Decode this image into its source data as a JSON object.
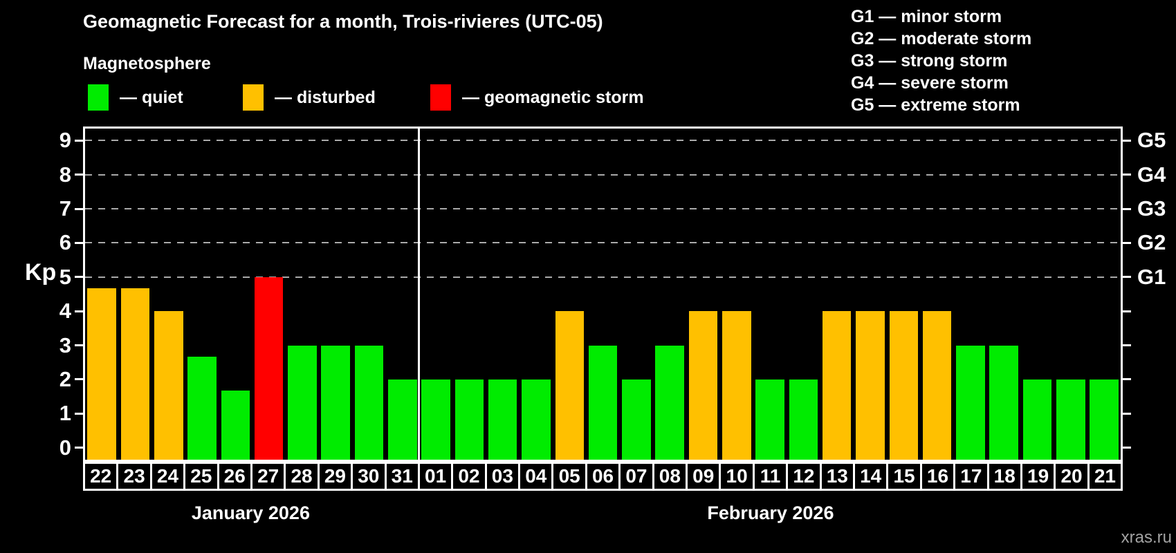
{
  "title": "Geomagnetic Forecast for a month, Trois-rivieres (UTC-05)",
  "subtitle": "Magnetosphere",
  "legend": {
    "items": [
      {
        "key": "quiet",
        "label": "— quiet",
        "color": "#00ec00"
      },
      {
        "key": "disturbed",
        "label": "— disturbed",
        "color": "#ffc000"
      },
      {
        "key": "storm",
        "label": "— geomagnetic storm",
        "color": "#ff0000"
      }
    ]
  },
  "storm_scale": {
    "items": [
      "G1 — minor storm",
      "G2 — moderate storm",
      "G3 — strong storm",
      "G4 — severe storm",
      "G5 — extreme storm"
    ]
  },
  "watermark": "xras.ru",
  "chart_data": {
    "type": "bar",
    "title": "Geomagnetic Forecast for a month, Trois-rivieres (UTC-05)",
    "subtitle": "Magnetosphere",
    "ylabel": "Kp",
    "ylim": [
      0,
      9
    ],
    "ylim_render": [
      -0.35,
      9.35
    ],
    "grid": "dashed horizontal lines at Kp 5-9 only",
    "gridlines": [
      5,
      6,
      7,
      8,
      9
    ],
    "y_ticks": [
      0,
      1,
      2,
      3,
      4,
      5,
      6,
      7,
      8,
      9
    ],
    "right_axis_labels": [
      {
        "label": "G1",
        "kp": 5
      },
      {
        "label": "G2",
        "kp": 6
      },
      {
        "label": "G3",
        "kp": 7
      },
      {
        "label": "G4",
        "kp": 8
      },
      {
        "label": "G5",
        "kp": 9
      }
    ],
    "legend_position": "top-left",
    "colors": {
      "quiet": "#00ec00",
      "disturbed": "#ffc000",
      "storm": "#ff0000"
    },
    "months": [
      {
        "label": "January 2026",
        "days_count": 10
      },
      {
        "label": "February 2026",
        "days_count": 21
      }
    ],
    "bars": [
      {
        "month": "January 2026",
        "day": "22",
        "kp": 4.67,
        "status": "disturbed"
      },
      {
        "month": "January 2026",
        "day": "23",
        "kp": 4.67,
        "status": "disturbed"
      },
      {
        "month": "January 2026",
        "day": "24",
        "kp": 4.0,
        "status": "disturbed"
      },
      {
        "month": "January 2026",
        "day": "25",
        "kp": 2.67,
        "status": "quiet"
      },
      {
        "month": "January 2026",
        "day": "26",
        "kp": 1.67,
        "status": "quiet"
      },
      {
        "month": "January 2026",
        "day": "27",
        "kp": 5.0,
        "status": "storm"
      },
      {
        "month": "January 2026",
        "day": "28",
        "kp": 3.0,
        "status": "quiet"
      },
      {
        "month": "January 2026",
        "day": "29",
        "kp": 3.0,
        "status": "quiet"
      },
      {
        "month": "January 2026",
        "day": "30",
        "kp": 3.0,
        "status": "quiet"
      },
      {
        "month": "January 2026",
        "day": "31",
        "kp": 2.0,
        "status": "quiet"
      },
      {
        "month": "February 2026",
        "day": "01",
        "kp": 2.0,
        "status": "quiet"
      },
      {
        "month": "February 2026",
        "day": "02",
        "kp": 2.0,
        "status": "quiet"
      },
      {
        "month": "February 2026",
        "day": "03",
        "kp": 2.0,
        "status": "quiet"
      },
      {
        "month": "February 2026",
        "day": "04",
        "kp": 2.0,
        "status": "quiet"
      },
      {
        "month": "February 2026",
        "day": "05",
        "kp": 4.0,
        "status": "disturbed"
      },
      {
        "month": "February 2026",
        "day": "06",
        "kp": 3.0,
        "status": "quiet"
      },
      {
        "month": "February 2026",
        "day": "07",
        "kp": 2.0,
        "status": "quiet"
      },
      {
        "month": "February 2026",
        "day": "08",
        "kp": 3.0,
        "status": "quiet"
      },
      {
        "month": "February 2026",
        "day": "09",
        "kp": 4.0,
        "status": "disturbed"
      },
      {
        "month": "February 2026",
        "day": "10",
        "kp": 4.0,
        "status": "disturbed"
      },
      {
        "month": "February 2026",
        "day": "11",
        "kp": 2.0,
        "status": "quiet"
      },
      {
        "month": "February 2026",
        "day": "12",
        "kp": 2.0,
        "status": "quiet"
      },
      {
        "month": "February 2026",
        "day": "13",
        "kp": 4.0,
        "status": "disturbed"
      },
      {
        "month": "February 2026",
        "day": "14",
        "kp": 4.0,
        "status": "disturbed"
      },
      {
        "month": "February 2026",
        "day": "15",
        "kp": 4.0,
        "status": "disturbed"
      },
      {
        "month": "February 2026",
        "day": "16",
        "kp": 4.0,
        "status": "disturbed"
      },
      {
        "month": "February 2026",
        "day": "17",
        "kp": 3.0,
        "status": "quiet"
      },
      {
        "month": "February 2026",
        "day": "18",
        "kp": 3.0,
        "status": "quiet"
      },
      {
        "month": "February 2026",
        "day": "19",
        "kp": 2.0,
        "status": "quiet"
      },
      {
        "month": "February 2026",
        "day": "20",
        "kp": 2.0,
        "status": "quiet"
      },
      {
        "month": "February 2026",
        "day": "21",
        "kp": 2.0,
        "status": "quiet"
      }
    ]
  }
}
